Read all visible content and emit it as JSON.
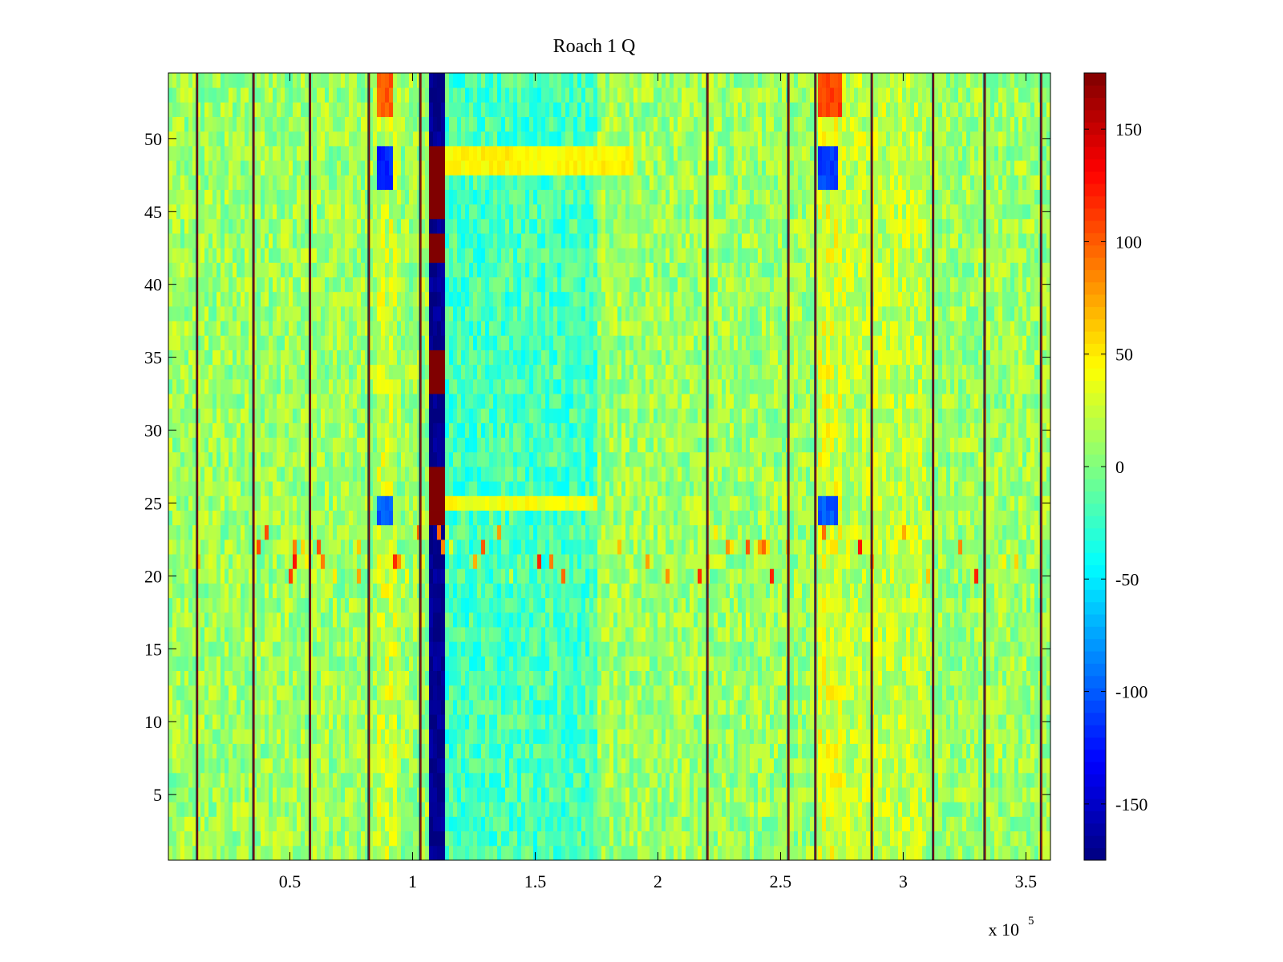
{
  "chart_data": {
    "type": "heatmap",
    "title": "Roach 1 Q",
    "xlabel": "",
    "ylabel": "",
    "x_exponent_label": "x 10",
    "x_exponent_power": "5",
    "xlim": [
      0.005,
      3.6
    ],
    "ylim": [
      0.5,
      54.5
    ],
    "rows": 54,
    "x_tick_values": [
      0.5,
      1,
      1.5,
      2,
      2.5,
      3,
      3.5
    ],
    "x_tick_labels": [
      "0.5",
      "1",
      "1.5",
      "2",
      "2.5",
      "3",
      "3.5"
    ],
    "y_tick_values": [
      5,
      10,
      15,
      20,
      25,
      30,
      35,
      40,
      45,
      50
    ],
    "y_tick_labels": [
      "5",
      "10",
      "15",
      "20",
      "25",
      "30",
      "35",
      "40",
      "45",
      "50"
    ],
    "colorbar": {
      "colormap": "jet",
      "clim": [
        -175,
        175
      ],
      "tick_values": [
        150,
        100,
        50,
        0,
        -50,
        -100,
        -150
      ],
      "tick_labels": [
        "150",
        "100",
        "50",
        "0",
        "-50",
        "-100",
        "-150"
      ]
    },
    "base_value": 10,
    "vertical_lines": [
      {
        "x": 0.12,
        "value": 175
      },
      {
        "x": 0.35,
        "value": 175
      },
      {
        "x": 0.58,
        "value": 175
      },
      {
        "x": 0.82,
        "value": 175
      },
      {
        "x": 1.03,
        "value": 175
      },
      {
        "x": 2.2,
        "value": 175
      },
      {
        "x": 2.53,
        "value": 175
      },
      {
        "x": 2.64,
        "value": 175
      },
      {
        "x": 2.87,
        "value": 175
      },
      {
        "x": 3.12,
        "value": 175
      },
      {
        "x": 3.33,
        "value": 175
      },
      {
        "x": 3.56,
        "value": 175
      }
    ],
    "column_bands": [
      {
        "x_start": 1.07,
        "x_end": 1.14,
        "value": -170,
        "note_rows_high": [
          [
            24,
            27,
            175
          ],
          [
            33,
            35,
            175
          ],
          [
            45,
            49,
            175
          ],
          [
            42,
            43,
            175
          ]
        ]
      },
      {
        "x_start": 0.85,
        "x_end": 0.93,
        "value": 25
      },
      {
        "x_start": 2.65,
        "x_end": 2.75,
        "value": 30
      },
      {
        "x_start": 1.14,
        "x_end": 1.75,
        "value": -20
      },
      {
        "x_start": 2.75,
        "x_end": 3.1,
        "value": 22
      }
    ],
    "hot_spots": [
      {
        "x_start": 0.86,
        "x_end": 0.92,
        "y_start": 47,
        "y_end": 49,
        "value": -120
      },
      {
        "x_start": 0.86,
        "x_end": 0.92,
        "y_start": 24,
        "y_end": 25,
        "value": -100
      },
      {
        "x_start": 2.66,
        "x_end": 2.74,
        "y_start": 47,
        "y_end": 49,
        "value": -110
      },
      {
        "x_start": 2.66,
        "x_end": 2.74,
        "y_start": 24,
        "y_end": 25,
        "value": -100
      },
      {
        "x_start": 0.85,
        "x_end": 0.92,
        "y_start": 52,
        "y_end": 54.5,
        "value": 100
      },
      {
        "x_start": 2.66,
        "x_end": 2.75,
        "y_start": 52,
        "y_end": 54.5,
        "value": 110
      },
      {
        "x_start": 1.14,
        "x_end": 1.9,
        "y_start": 47.5,
        "y_end": 49,
        "value": 45
      },
      {
        "x_start": 1.14,
        "x_end": 1.75,
        "y_start": 24.5,
        "y_end": 25.5,
        "value": 40
      }
    ],
    "noisy_row_band": {
      "y_start": 20,
      "y_end": 23.5,
      "value": 60
    }
  }
}
